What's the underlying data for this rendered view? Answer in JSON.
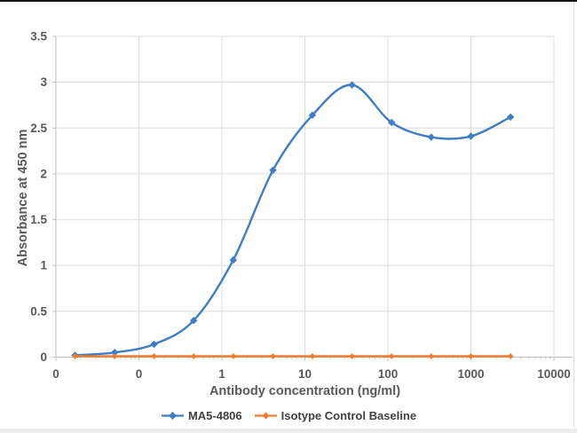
{
  "page": {
    "top_border_color": "#151515",
    "bottom_bar_color": "#ECECEC",
    "right_edge_line_color": "#DFDFDF",
    "background": "#FFFFFF"
  },
  "chart_data": {
    "type": "line",
    "title": "",
    "xlabel": "Antibody concentration (ng/ml)",
    "ylabel": "Absorbance at 450 nm",
    "x_scale": "log",
    "xlim": [
      0.01,
      10000
    ],
    "ylim": [
      0,
      3.5
    ],
    "grid": true,
    "legend_position": "bottom",
    "x_tick_values": [
      0.01,
      0.1,
      1,
      10,
      100,
      1000,
      10000
    ],
    "x_tick_labels": [
      "0",
      "0",
      "1",
      "10",
      "100",
      "1000",
      "10000"
    ],
    "y_tick_values": [
      0,
      0.5,
      1,
      1.5,
      2,
      2.5,
      3,
      3.5
    ],
    "y_tick_labels": [
      "0",
      "0.5",
      "1",
      "1.5",
      "2",
      "2.5",
      "3",
      "3.5"
    ],
    "x": [
      0.017,
      0.051,
      0.152,
      0.457,
      1.37,
      4.12,
      12.3,
      37,
      111,
      333,
      1000,
      3000
    ],
    "series": [
      {
        "name": "MA5-4806",
        "color": "#3E7CC5",
        "marker": "diamond",
        "smooth": true,
        "values": [
          0.02,
          0.05,
          0.14,
          0.4,
          1.06,
          2.04,
          2.64,
          2.97,
          2.56,
          2.4,
          2.41,
          2.62
        ]
      },
      {
        "name": "Isotype Control Baseline",
        "color": "#ED7D31",
        "marker": "diamond",
        "smooth": false,
        "values": [
          0.01,
          0.01,
          0.01,
          0.01,
          0.01,
          0.01,
          0.01,
          0.01,
          0.01,
          0.01,
          0.01,
          0.01
        ]
      }
    ],
    "style": {
      "axis_color": "#BFBFBF",
      "gridline_color": "#DCDCDC",
      "tick_label_color": "#595959",
      "axis_title_color": "#595959",
      "legend_text_color": "#404040"
    }
  }
}
